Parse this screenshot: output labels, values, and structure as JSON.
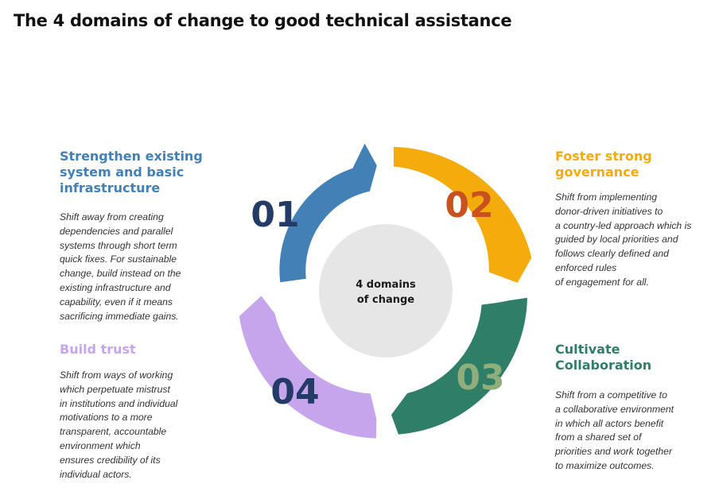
{
  "title": "The 4 domains of change to good technical assistance",
  "center": {
    "line1": "4 domains",
    "line2": "of change"
  },
  "domains": [
    {
      "number": "01",
      "heading": "Strengthen existing\nsystem and basic\ninfrastructure",
      "description": "Shift away from creating\ndependencies and parallel\nsystems through short term\nquick fixes. For sustainable\nchange, build instead on the\nexisting infrastructure and\ncapability, even if it means\nsacrificing immediate gains.",
      "color": "#4380b5",
      "number_color": "#233b66"
    },
    {
      "number": "02",
      "heading": "Foster strong\ngovernance",
      "description": "Shift from implementing\ndonor-driven initiatives to\na country-led approach which is\nguided by local priorities and\nfollows clearly defined and\nenforced rules\n of engagement for all.",
      "color": "#f4ab0c",
      "number_color": "#c9501f"
    },
    {
      "number": "03",
      "heading": "Cultivate\nCollaboration",
      "description": "Shift from a competitive to\na collaborative environment\nin which all actors benefit\nfrom a shared set of\npriorities and work together\nto maximize outcomes.",
      "color": "#2e7e68",
      "number_color": "#8fae7b"
    },
    {
      "number": "04",
      "heading": "Build trust",
      "description": "Shift from ways of working\nwhich perpetuate mistrust\nin institutions and individual\nmotivations to a more\ntransparent, accountable\nenvironment which\nensures credibility of its\nindividual actors.",
      "color": "#c7a5ec",
      "number_color": "#233b66"
    }
  ],
  "center_circle_color": "#e6e6e6"
}
